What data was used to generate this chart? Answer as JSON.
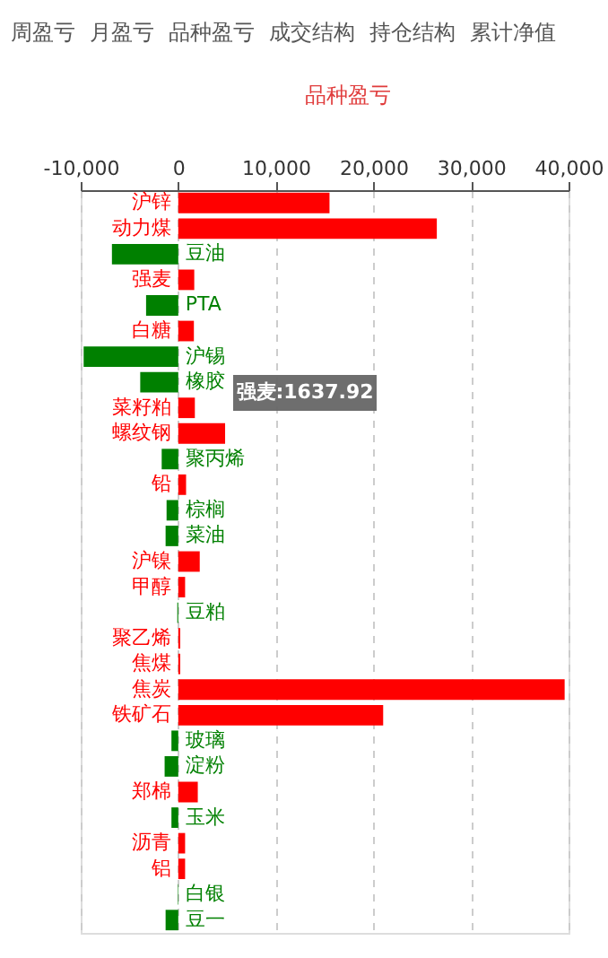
{
  "chart_data": {
    "type": "bar",
    "orientation": "horizontal",
    "title": "品种盈亏",
    "categories": [
      "沪锌",
      "动力煤",
      "豆油",
      "强麦",
      "PTA",
      "白糖",
      "沪锡",
      "橡胶",
      "菜籽粕",
      "螺纹钢",
      "聚丙烯",
      "铅",
      "棕榈",
      "菜油",
      "沪镍",
      "甲醇",
      "豆粕",
      "聚乙烯",
      "焦煤",
      "焦炭",
      "铁矿石",
      "玻璃",
      "淀粉",
      "郑棉",
      "玉米",
      "沥青",
      "铝",
      "白银",
      "豆一"
    ],
    "values": [
      15500,
      26500,
      -6800,
      1637.92,
      -3300,
      1600,
      -9700,
      -3900,
      1700,
      4800,
      -1700,
      800,
      -1200,
      -1300,
      2200,
      700,
      -100,
      200,
      200,
      39600,
      21000,
      -700,
      -1400,
      2000,
      -700,
      700,
      700,
      -50,
      -1300
    ],
    "colors": [
      "#ff0000",
      "#ff0000",
      "#008000",
      "#ff0000",
      "#008000",
      "#ff0000",
      "#008000",
      "#008000",
      "#ff0000",
      "#ff0000",
      "#008000",
      "#ff0000",
      "#008000",
      "#008000",
      "#ff0000",
      "#ff0000",
      "#008000",
      "#ff0000",
      "#ff0000",
      "#ff0000",
      "#ff0000",
      "#008000",
      "#008000",
      "#ff0000",
      "#008000",
      "#ff0000",
      "#ff0000",
      "#008000",
      "#008000"
    ],
    "xlim": [
      -10000,
      40000
    ],
    "xticks": [
      {
        "value": -10000,
        "label": "-10,000"
      },
      0,
      {
        "value": 10000,
        "label": "10,000"
      },
      {
        "value": 20000,
        "label": "20,000"
      },
      {
        "value": 30000,
        "label": "30,000"
      },
      {
        "value": 40000,
        "label": "40,000"
      }
    ],
    "grid": "x",
    "annotations": [
      "周盈亏",
      "月盈亏",
      "品种盈亏",
      "成交结构",
      "持仓结构",
      "累计净值",
      "强麦:1637.92"
    ]
  }
}
